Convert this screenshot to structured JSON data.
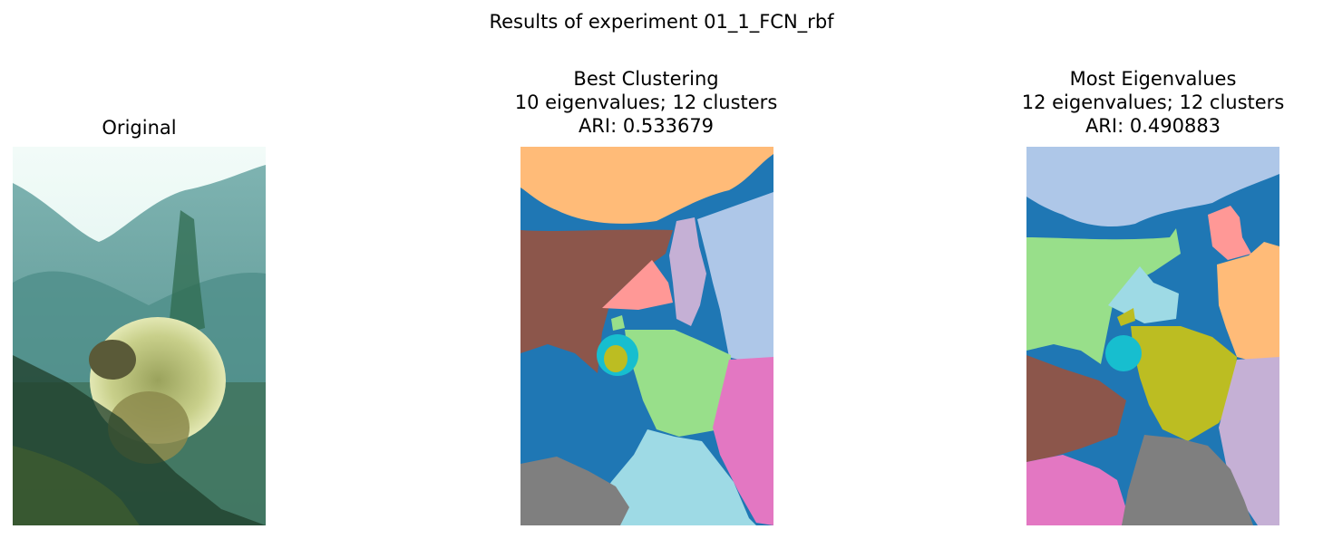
{
  "suptitle": "Results of experiment 01_1_FCN_rbf",
  "panels": [
    {
      "lines": [
        "Original"
      ]
    },
    {
      "lines": [
        "Best Clustering",
        "10 eigenvalues; 12 clusters",
        "ARI: 0.533679"
      ]
    },
    {
      "lines": [
        "Most Eigenvalues",
        "12 eigenvalues; 12 clusters",
        "ARI: 0.490883"
      ]
    }
  ],
  "colors": {
    "blue": "#1f77b4",
    "light_blue": "#aec7e8",
    "orange_light": "#ffbb78",
    "green_light": "#98df8a",
    "pink_light": "#ff9896",
    "purple_light": "#c5b0d5",
    "brown": "#8c564b",
    "pink": "#e377c2",
    "gray": "#7f7f7f",
    "olive": "#bcbd22",
    "cyan": "#17becf",
    "cyan_light": "#9edae5"
  }
}
